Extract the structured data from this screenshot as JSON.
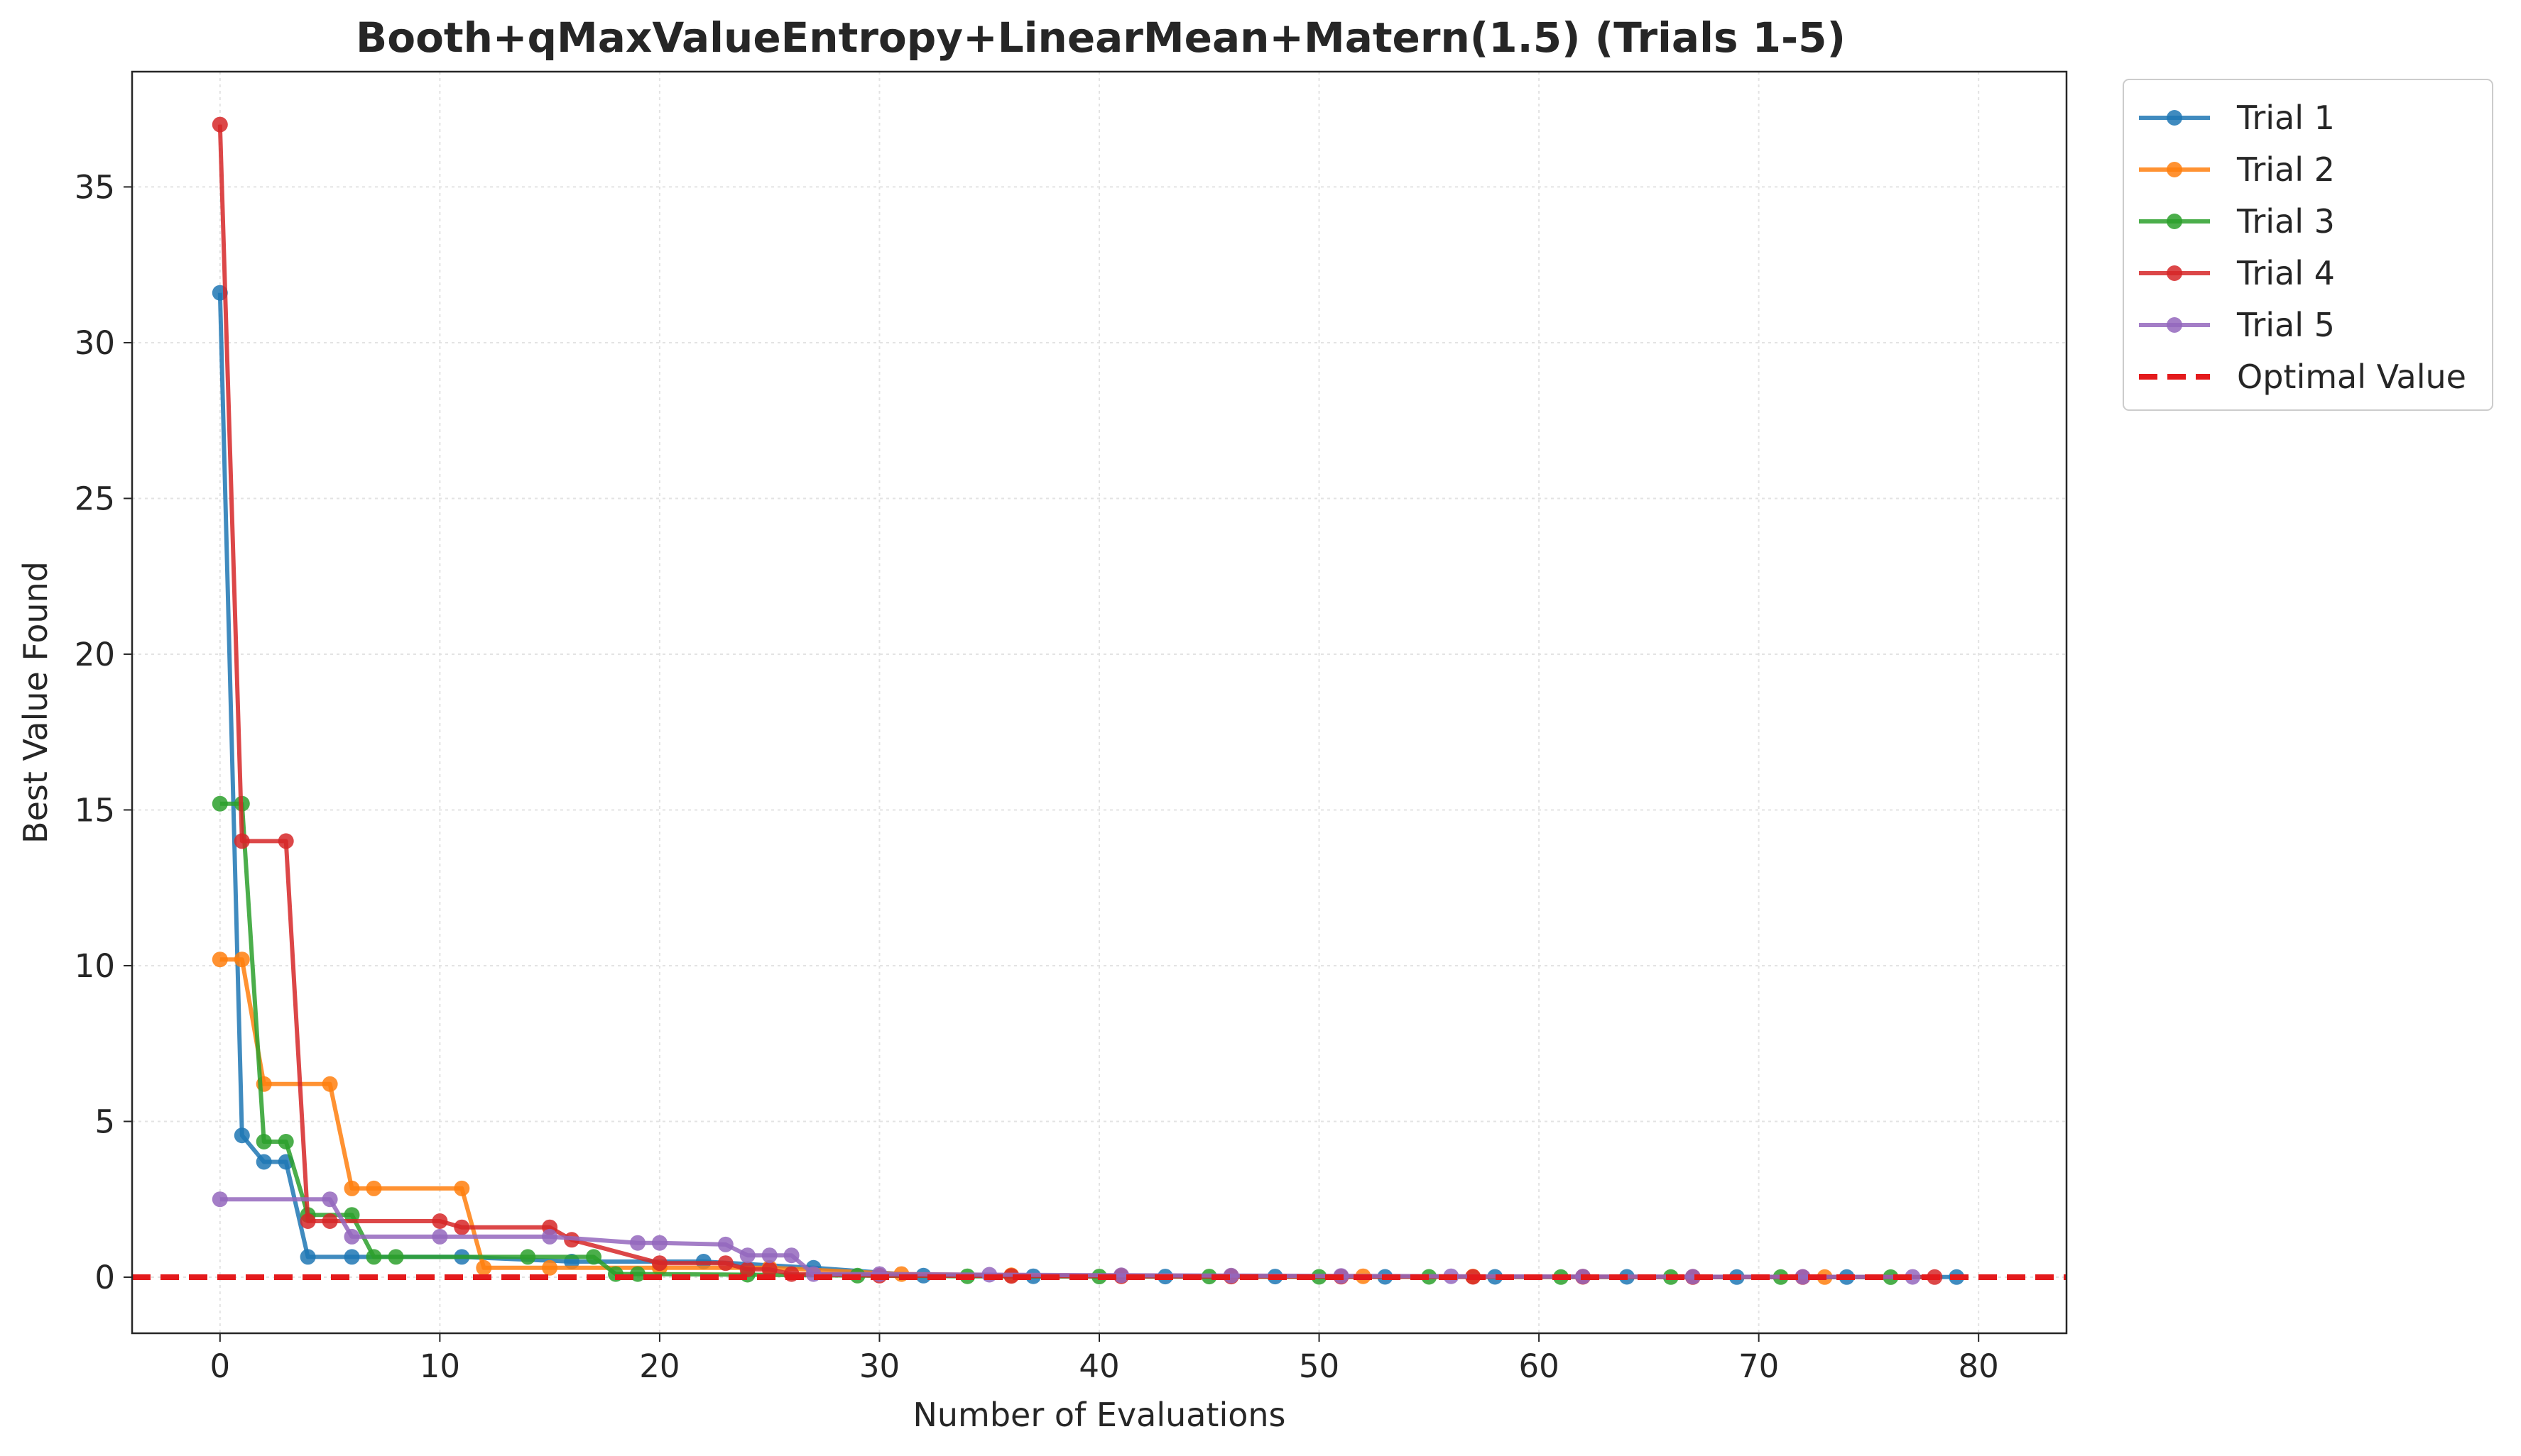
{
  "chart_data": {
    "type": "line",
    "title": "Booth+qMaxValueEntropy+LinearMean+Matern(1.5) (Trials 1-5)",
    "xlabel": "Number of Evaluations",
    "ylabel": "Best Value Found",
    "xlim": [
      -4,
      84
    ],
    "ylim": [
      -1.8,
      38.7
    ],
    "xticks": [
      0,
      10,
      20,
      30,
      40,
      50,
      60,
      70,
      80
    ],
    "yticks": [
      0,
      5,
      10,
      15,
      20,
      25,
      30,
      35
    ],
    "grid": true,
    "legend_position": "outside-top-right",
    "reference_line": {
      "name": "Optimal Value",
      "y": 0,
      "color": "#e41a1c"
    },
    "series": [
      {
        "name": "Trial 1",
        "color": "#1f77b4",
        "x": [
          0,
          1,
          2,
          3,
          4,
          6,
          11,
          16,
          22,
          27,
          32,
          37,
          43,
          48,
          53,
          58,
          64,
          69,
          74,
          79
        ],
        "y": [
          31.6,
          4.55,
          3.7,
          3.7,
          0.65,
          0.65,
          0.65,
          0.5,
          0.5,
          0.3,
          0.05,
          0.03,
          0.02,
          0.02,
          0.01,
          0.01,
          0.01,
          0.005,
          0.004,
          0.003
        ]
      },
      {
        "name": "Trial 2",
        "color": "#ff7f0e",
        "x": [
          0,
          1,
          2,
          5,
          6,
          7,
          11,
          12,
          15,
          20,
          25,
          31,
          36,
          41,
          46,
          52,
          57,
          62,
          67,
          73
        ],
        "y": [
          10.2,
          10.2,
          6.2,
          6.2,
          2.85,
          2.85,
          2.85,
          0.3,
          0.3,
          0.3,
          0.3,
          0.1,
          0.06,
          0.05,
          0.04,
          0.03,
          0.02,
          0.015,
          0.01,
          0.005
        ]
      },
      {
        "name": "Trial 3",
        "color": "#2ca02c",
        "x": [
          0,
          1,
          2,
          3,
          4,
          6,
          7,
          8,
          14,
          17,
          18,
          19,
          24,
          29,
          34,
          40,
          45,
          50,
          55,
          61,
          66,
          71,
          76
        ],
        "y": [
          15.2,
          15.2,
          4.35,
          4.35,
          2.0,
          2.0,
          0.65,
          0.65,
          0.65,
          0.65,
          0.1,
          0.1,
          0.08,
          0.05,
          0.03,
          0.02,
          0.02,
          0.01,
          0.01,
          0.005,
          0.004,
          0.003,
          0.002
        ]
      },
      {
        "name": "Trial 4",
        "color": "#d62728",
        "x": [
          0,
          1,
          3,
          4,
          5,
          10,
          11,
          15,
          16,
          20,
          23,
          24,
          25,
          26,
          30,
          36,
          41,
          46,
          51,
          57,
          62,
          67,
          72,
          78
        ],
        "y": [
          37.0,
          14.0,
          14.0,
          1.8,
          1.8,
          1.8,
          1.6,
          1.6,
          1.2,
          0.45,
          0.45,
          0.25,
          0.25,
          0.1,
          0.05,
          0.04,
          0.03,
          0.02,
          0.015,
          0.01,
          0.01,
          0.005,
          0.005,
          0.003
        ]
      },
      {
        "name": "Trial 5",
        "color": "#9467bd",
        "x": [
          0,
          5,
          6,
          10,
          15,
          19,
          20,
          23,
          24,
          25,
          26,
          27,
          30,
          35,
          41,
          46,
          51,
          56,
          62,
          67,
          72,
          77
        ],
        "y": [
          2.5,
          2.5,
          1.3,
          1.3,
          1.3,
          1.1,
          1.1,
          1.05,
          0.7,
          0.7,
          0.7,
          0.1,
          0.1,
          0.08,
          0.06,
          0.05,
          0.04,
          0.03,
          0.02,
          0.015,
          0.01,
          0.008
        ]
      }
    ]
  }
}
